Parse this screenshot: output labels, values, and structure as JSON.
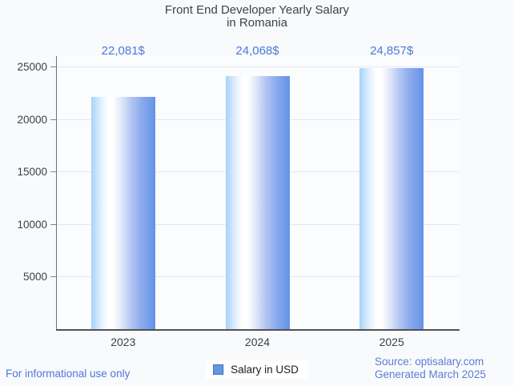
{
  "chart_data": {
    "type": "bar",
    "title": "Front End Developer Yearly Salary in Romania",
    "title_lines": [
      "Front End Developer Yearly Salary",
      "in Romania"
    ],
    "categories": [
      "2023",
      "2024",
      "2025"
    ],
    "values": [
      22081,
      24068,
      24857
    ],
    "value_labels": [
      "22,081$",
      "24,068$",
      "24,857$"
    ],
    "series": [
      {
        "name": "Salary in USD",
        "values": [
          22081,
          24068,
          24857
        ]
      }
    ],
    "xlabel": "",
    "ylabel": "",
    "ylim": [
      0,
      26000
    ],
    "yticks": [
      5000,
      10000,
      15000,
      20000,
      25000
    ],
    "ytick_labels": [
      "5000",
      "10000",
      "15000",
      "20000",
      "25000"
    ],
    "grid": true,
    "legend_position": "bottom"
  },
  "legend": {
    "label": "Salary in USD"
  },
  "footer": {
    "left": "For informational use only",
    "source": "Source: optisalary.com",
    "generated": "Generated March 2025"
  },
  "colors": {
    "annotation_blue": "#4a79dd",
    "footer_left_blue": "#4c77db",
    "footer_right_blue": "#5b7ed3",
    "title_gray": "#3f4246",
    "axis_label_gray": "#3c4043",
    "gridline_gray": "#e5e8ec",
    "axis_line_gray": "#6f7479",
    "baseline_gray": "#505356",
    "legend_swatch": "#6397de",
    "legend_swatch_border": "#4276be",
    "bar_gradient": [
      "#a6d3f9",
      "#e0effd",
      "#ffffff",
      "#e3eaf9",
      "#b3c6f2",
      "#8cabee",
      "#6592e7"
    ]
  }
}
